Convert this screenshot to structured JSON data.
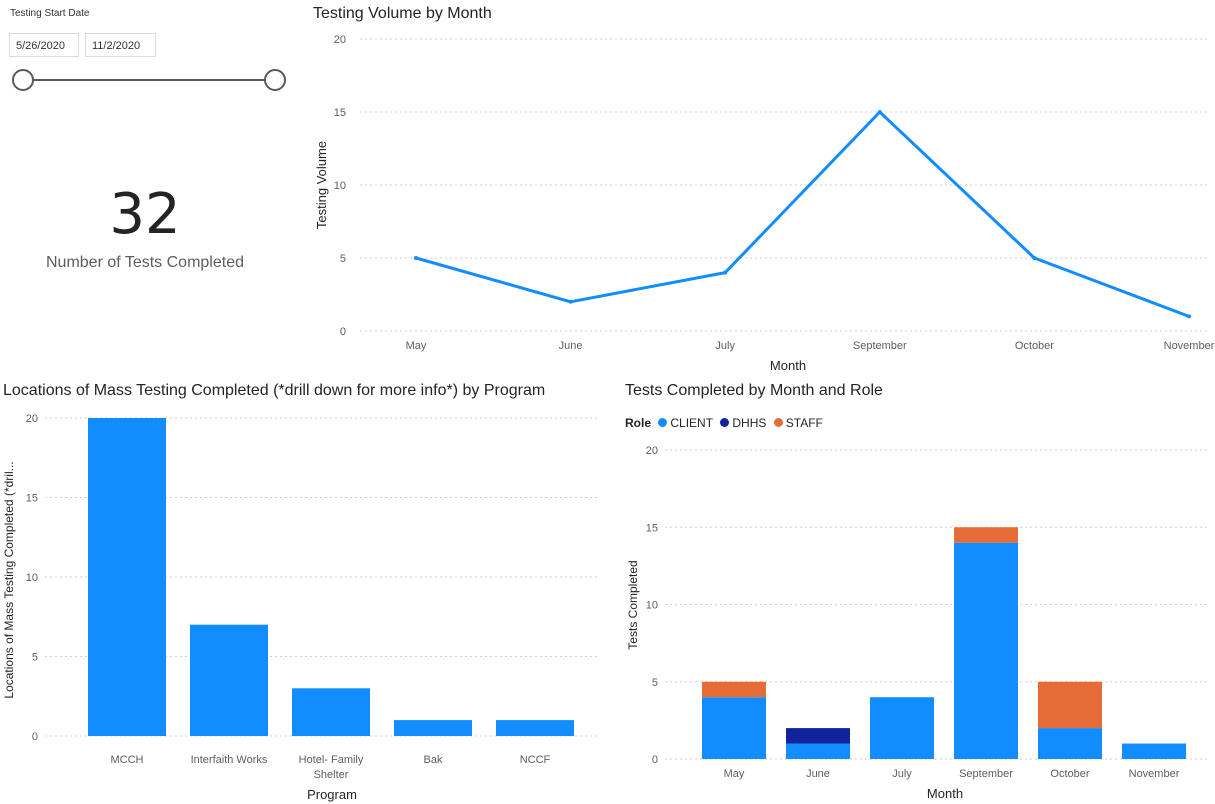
{
  "slicer": {
    "title": "Testing Start Date",
    "start_date": "5/26/2020",
    "end_date": "11/2/2020"
  },
  "kpi": {
    "value": "32",
    "label": "Number of Tests Completed"
  },
  "colors": {
    "client": "#118dff",
    "dhhs": "#12239e",
    "staff": "#e66c37",
    "grid": "#cfcfcf",
    "axis_text": "#605e5c"
  },
  "chart_data": [
    {
      "type": "line",
      "title": "Testing Volume by Month",
      "xlabel": "Month",
      "ylabel": "Testing Volume",
      "categories": [
        "May",
        "June",
        "July",
        "September",
        "October",
        "November"
      ],
      "values": [
        5,
        2,
        4,
        15,
        5,
        1
      ],
      "ylim": [
        0,
        20
      ],
      "yticks": [
        0,
        5,
        10,
        15,
        20
      ],
      "grid": true
    },
    {
      "type": "bar",
      "title": "Locations of Mass Testing Completed (*drill down for more info*) by Program",
      "xlabel": "Program",
      "ylabel": "Locations of Mass Testing Completed (*dril...",
      "categories": [
        "MCCH",
        "Interfaith Works",
        "Hotel- Family Shelter",
        "Bak",
        "NCCF"
      ],
      "category_lines": [
        [
          "MCCH"
        ],
        [
          "Interfaith Works"
        ],
        [
          "Hotel- Family",
          "Shelter"
        ],
        [
          "Bak"
        ],
        [
          "NCCF"
        ]
      ],
      "values": [
        20,
        7,
        3,
        1,
        1
      ],
      "ylim": [
        0,
        20
      ],
      "yticks": [
        0,
        5,
        10,
        15,
        20
      ],
      "grid": true
    },
    {
      "type": "bar",
      "stacked": true,
      "title": "Tests Completed by Month and Role",
      "xlabel": "Month",
      "ylabel": "Tests Completed",
      "legend_title": "Role",
      "legend_position": "top-left",
      "categories": [
        "May",
        "June",
        "July",
        "September",
        "October",
        "November"
      ],
      "series": [
        {
          "name": "CLIENT",
          "values": [
            4,
            1,
            4,
            14,
            2,
            1
          ]
        },
        {
          "name": "DHHS",
          "values": [
            0,
            1,
            0,
            0,
            0,
            0
          ]
        },
        {
          "name": "STAFF",
          "values": [
            1,
            0,
            0,
            1,
            3,
            0
          ]
        }
      ],
      "ylim": [
        0,
        20
      ],
      "yticks": [
        0,
        5,
        10,
        15,
        20
      ],
      "grid": true
    }
  ]
}
